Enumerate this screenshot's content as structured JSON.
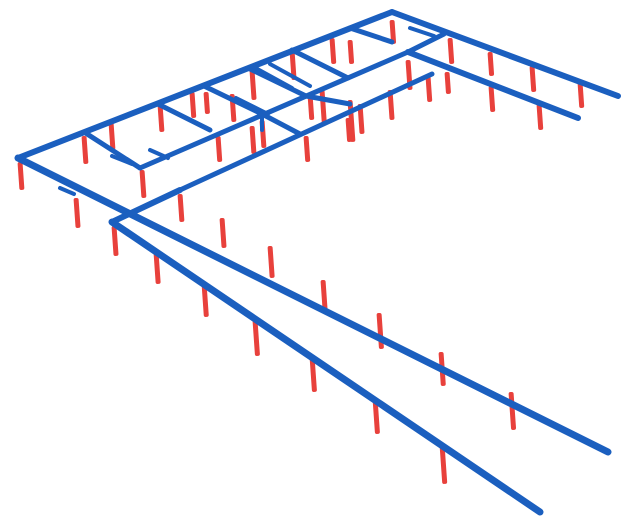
{
  "scene": {
    "kind": "3d-structural-frame-isometric",
    "colors": {
      "beam": "#1b5fbf",
      "column": "#e8413c",
      "background": "#ffffff"
    },
    "labels": []
  }
}
